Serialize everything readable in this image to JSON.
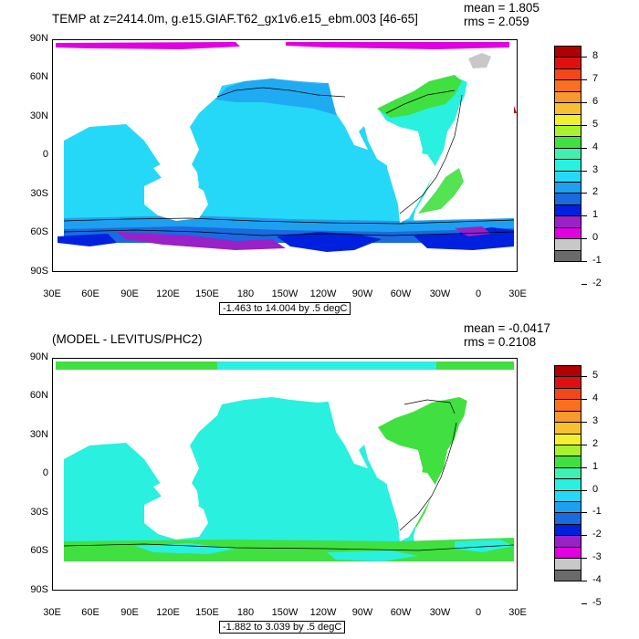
{
  "panels": [
    {
      "title": "TEMP at z=2414.0m, g.e15.GIAF.T62_gx1v6.e15_ebm.003 [46-65]",
      "mean_label": "mean = 1.805",
      "rms_label": "rms = 2.059",
      "range_label": "-1.463 to 14.004 by .5 degC",
      "colorbar_labels": [
        "8",
        "7",
        "6",
        "5",
        "4",
        "3",
        "2",
        "1",
        "0",
        "-1",
        "-2"
      ]
    },
    {
      "title": "(MODEL - LEVITUS/PHC2)",
      "mean_label": "mean = -0.0417",
      "rms_label": "rms = 0.2108",
      "range_label": "-1.882 to 3.039 by .5 degC",
      "colorbar_labels": [
        "5",
        "4",
        "3",
        "2",
        "1",
        "0",
        "-1",
        "-2",
        "-3",
        "-4",
        "-5"
      ]
    }
  ],
  "axes": {
    "lat_labels": [
      "90N",
      "60N",
      "30N",
      "0",
      "30S",
      "60S",
      "90S"
    ],
    "lon_labels": [
      "30E",
      "60E",
      "90E",
      "120E",
      "150E",
      "180",
      "150W",
      "120W",
      "90W",
      "60W",
      "30W",
      "0",
      "30E"
    ]
  },
  "palette": [
    "#6a6a6a",
    "#c8c8c8",
    "#e000e0",
    "#9a20c8",
    "#0020e0",
    "#1a6ae0",
    "#1ea0f0",
    "#26d8f8",
    "#2af0e0",
    "#40f0b0",
    "#40e040",
    "#a8f030",
    "#f0f030",
    "#f8c030",
    "#f89830",
    "#f87020",
    "#f04818",
    "#e01010",
    "#b00000"
  ],
  "colors": {
    "panel1_main": "#26d8f8",
    "panel1_south": "#1ea0f0",
    "panel1_atlantic": "#2af0e0",
    "panel2_main": "#2af0e0",
    "panel2_atlantic": "#40e040"
  }
}
